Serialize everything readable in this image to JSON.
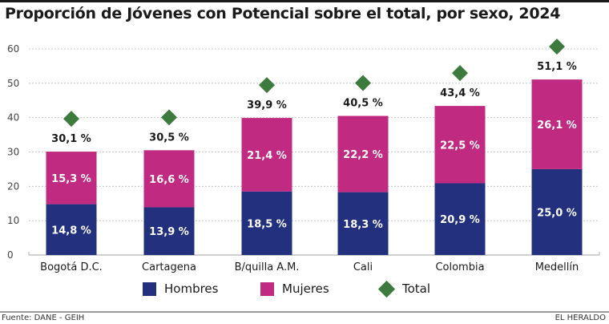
{
  "title": "Proporción de Jóvenes con Potencial sobre el total, por sexo, 2024",
  "footer": {
    "source": "Fuente: DANE - GEIH",
    "brand": "EL HERALDO"
  },
  "colors": {
    "hombres": "#22307e",
    "mujeres": "#c02a80",
    "total": "#3d7a3d",
    "grid": "#bdbdbd",
    "text": "#1a1a1a"
  },
  "chart_data": {
    "type": "bar",
    "stacked": true,
    "title": "Proporción de Jóvenes con Potencial sobre el total, por sexo, 2024",
    "xlabel": "",
    "ylabel": "",
    "ylim": [
      0,
      60
    ],
    "yticks": [
      0,
      10,
      20,
      30,
      40,
      50,
      60
    ],
    "grid": true,
    "legend_position": "bottom-center",
    "categories": [
      "Bogotá D.C.",
      "Cartagena",
      "B/quilla A.M.",
      "Cali",
      "Colombia",
      "Medellín"
    ],
    "series": [
      {
        "name": "Hombres",
        "kind": "bar",
        "values": [
          14.8,
          13.9,
          18.5,
          18.3,
          20.9,
          25.0
        ],
        "labels": [
          "14,8 %",
          "13,9 %",
          "18,5 %",
          "18,3 %",
          "20,9 %",
          "25,0 %"
        ]
      },
      {
        "name": "Mujeres",
        "kind": "bar",
        "values": [
          15.3,
          16.6,
          21.4,
          22.2,
          22.5,
          26.1
        ],
        "labels": [
          "15,3 %",
          "16,6 %",
          "21,4 %",
          "22,2 %",
          "22,5 %",
          "26,1 %"
        ]
      },
      {
        "name": "Total",
        "kind": "marker",
        "values": [
          30.1,
          30.5,
          39.9,
          40.5,
          43.4,
          51.1
        ],
        "labels": [
          "30,1 %",
          "30,5 %",
          "39,9 %",
          "40,5 %",
          "43,4 %",
          "51,1 %"
        ]
      }
    ]
  },
  "legend": [
    {
      "name": "Hombres",
      "symbol": "square"
    },
    {
      "name": "Mujeres",
      "symbol": "square"
    },
    {
      "name": "Total",
      "symbol": "diamond"
    }
  ]
}
